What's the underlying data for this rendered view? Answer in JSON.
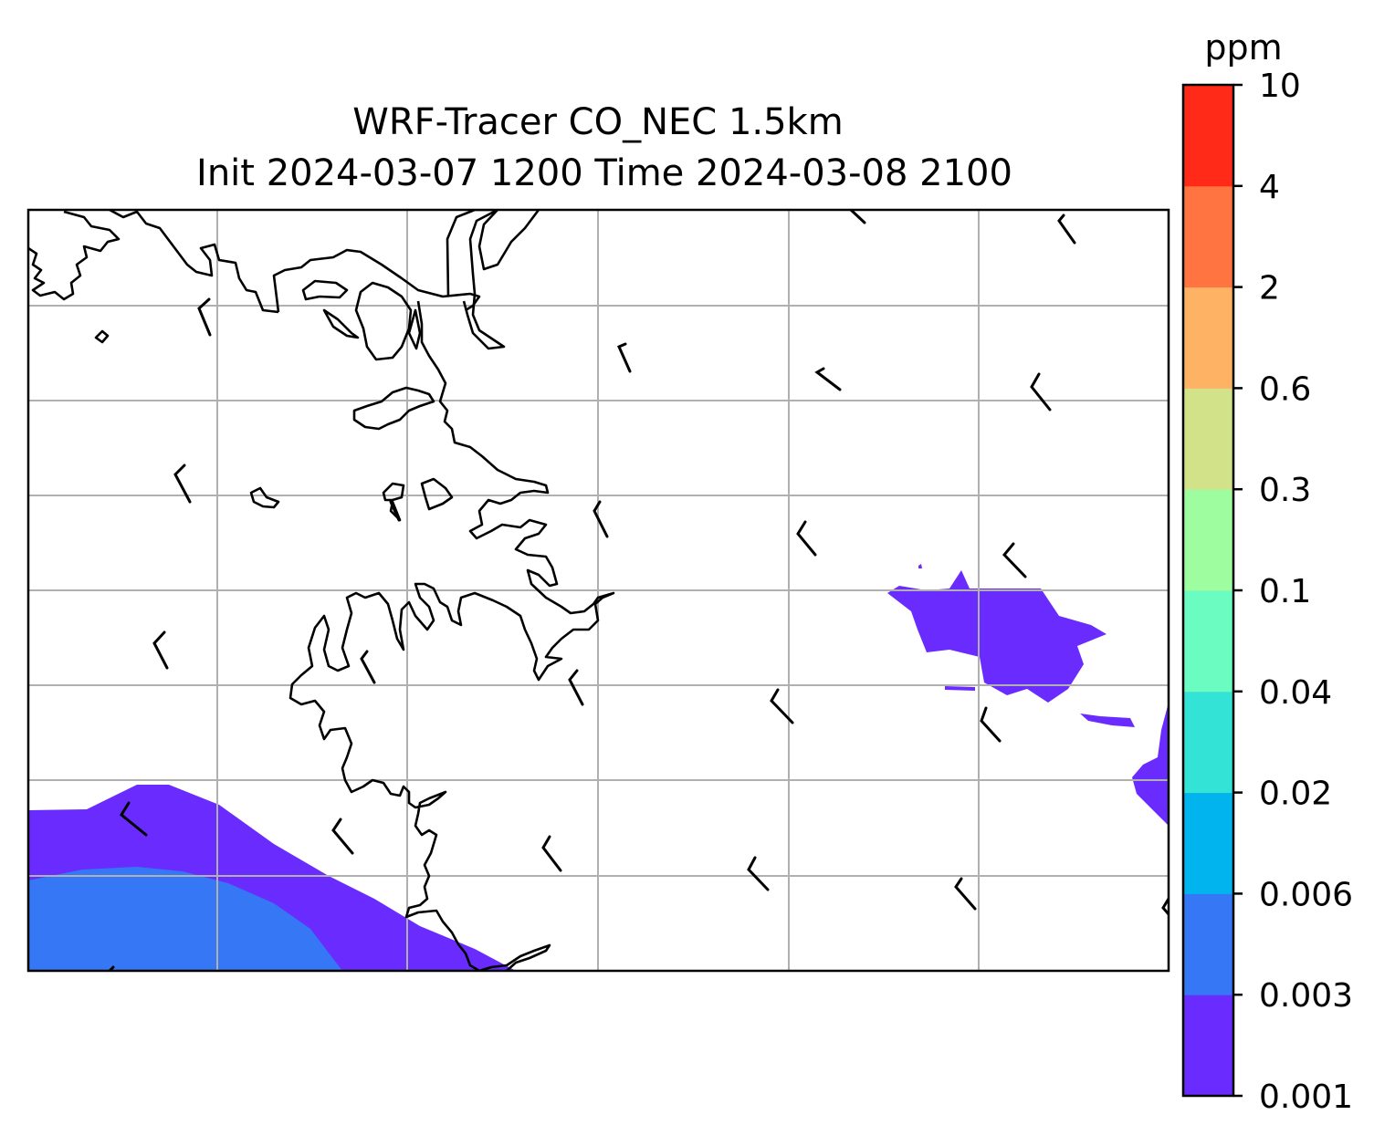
{
  "title": {
    "line1": "WRF-Tracer CO_NEC 1.5km",
    "line2": "Init 2024-03-07 1200 Time 2024-03-08 2100"
  },
  "colorbar": {
    "unit_label": "ppm",
    "levels": [
      "0.001",
      "0.003",
      "0.006",
      "0.02",
      "0.04",
      "0.1",
      "0.3",
      "0.6",
      "2",
      "4",
      "10"
    ],
    "colors": [
      "#6a2bff",
      "#3577f5",
      "#02b4ee",
      "#33e3d6",
      "#6afcc0",
      "#9dfd9f",
      "#d1e289",
      "#feb264",
      "#ff7440",
      "#ff2a17"
    ]
  },
  "map": {
    "coastline_color": "#000000",
    "grid_color": "#b0b0b0",
    "gridlines": true,
    "tracer_colors": {
      "band_0_001_0_003": "#6a2bff",
      "band_0_003_0_006": "#3577f5"
    },
    "wind_barbs": true
  }
}
